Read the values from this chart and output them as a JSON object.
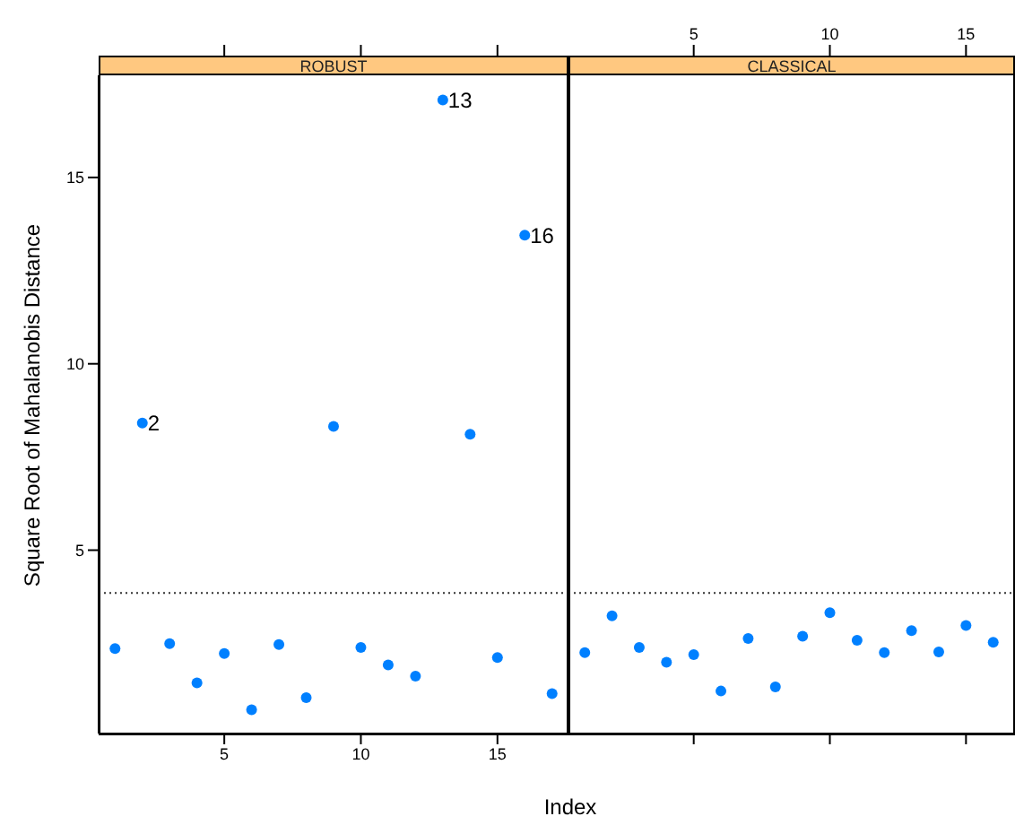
{
  "chart_data": [
    {
      "type": "scatter",
      "title": "ROBUST",
      "xlabel": "Index",
      "ylabel": "Square Root of Mahalanobis Distance",
      "x": [
        1,
        2,
        3,
        4,
        5,
        6,
        7,
        8,
        9,
        10,
        11,
        12,
        13,
        14,
        15,
        16,
        17
      ],
      "values": [
        2.36,
        8.41,
        2.49,
        1.44,
        2.23,
        0.72,
        2.47,
        1.04,
        8.32,
        2.39,
        1.92,
        1.62,
        17.08,
        8.11,
        2.12,
        13.45,
        1.15
      ],
      "color": "#0080ff",
      "marker": "circle",
      "xlim": [
        0.4,
        17.6
      ],
      "xticks": [
        5,
        10,
        15
      ],
      "ylim": [
        0.08,
        17.74
      ],
      "yticks": [
        5,
        10,
        15
      ],
      "grid": false,
      "legend": false,
      "ref_lines": [
        {
          "axis": "y",
          "value": 3.85,
          "line_style": "dotted"
        }
      ],
      "annotations": [
        {
          "text": "13",
          "x": 13,
          "y": 17.08
        },
        {
          "text": "16",
          "x": 16,
          "y": 13.45
        },
        {
          "text": "2",
          "x": 2,
          "y": 8.41
        }
      ]
    },
    {
      "type": "scatter",
      "title": "CLASSICAL",
      "x": [
        1,
        2,
        3,
        4,
        5,
        6,
        7,
        8,
        9,
        10,
        11,
        12,
        13,
        14,
        15,
        16
      ],
      "values": [
        2.25,
        3.24,
        2.39,
        1.99,
        2.2,
        1.22,
        2.63,
        1.33,
        2.69,
        3.32,
        2.58,
        2.25,
        2.84,
        2.27,
        2.98,
        2.53
      ],
      "color": "#0080ff",
      "marker": "circle",
      "xlim": [
        0.4,
        16.8
      ],
      "xticks": [
        5,
        10,
        15
      ],
      "ylim": [
        0.08,
        17.74
      ],
      "tick_labels": "x",
      "grid": false,
      "legend": false,
      "ref_lines": [
        {
          "axis": "y",
          "value": 3.85,
          "line_style": "dotted"
        }
      ]
    }
  ]
}
